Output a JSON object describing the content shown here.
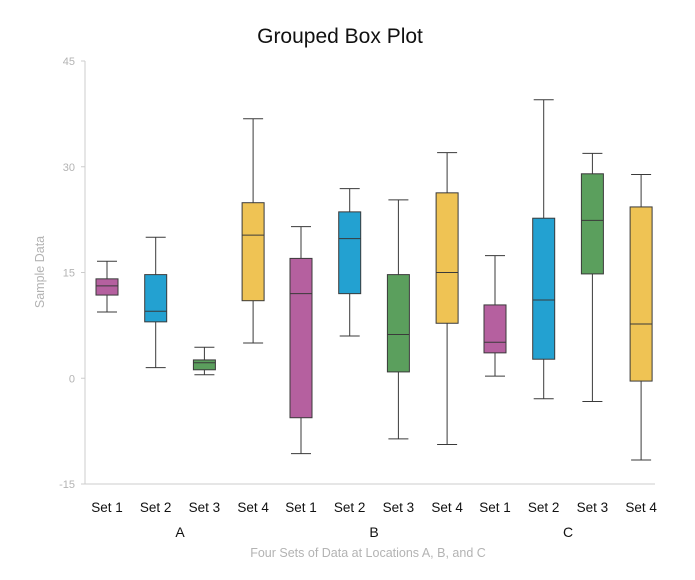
{
  "chart_data": {
    "type": "box",
    "title": "Grouped Box Plot",
    "xlabel": "Four Sets of Data at Locations A, B, and C",
    "ylabel": "Sample Data",
    "ylim": [
      -15,
      45
    ],
    "yticks": [
      -15,
      0,
      15,
      30,
      45
    ],
    "groups": [
      "A",
      "B",
      "C"
    ],
    "categories": [
      "Set 1",
      "Set 2",
      "Set 3",
      "Set 4"
    ],
    "colors": [
      "#b5609f",
      "#23a1d1",
      "#5b9f5d",
      "#efc354"
    ],
    "boxes": [
      [
        {
          "min": 9.4,
          "q1": 11.8,
          "median": 13.1,
          "q3": 14.1,
          "max": 16.6
        },
        {
          "min": 1.5,
          "q1": 8.0,
          "median": 9.5,
          "q3": 14.7,
          "max": 20.0
        },
        {
          "min": 0.5,
          "q1": 1.2,
          "median": 2.2,
          "q3": 2.6,
          "max": 4.4
        },
        {
          "min": 5.0,
          "q1": 11.0,
          "median": 20.3,
          "q3": 24.9,
          "max": 36.8
        }
      ],
      [
        {
          "min": -10.7,
          "q1": -5.6,
          "median": 12.0,
          "q3": 17.0,
          "max": 21.5
        },
        {
          "min": 6.0,
          "q1": 12.0,
          "median": 19.8,
          "q3": 23.6,
          "max": 26.9
        },
        {
          "min": -8.6,
          "q1": 0.9,
          "median": 6.2,
          "q3": 14.7,
          "max": 25.3
        },
        {
          "min": -9.4,
          "q1": 7.8,
          "median": 15.0,
          "q3": 26.3,
          "max": 32.0
        }
      ],
      [
        {
          "min": 0.3,
          "q1": 3.6,
          "median": 5.1,
          "q3": 10.4,
          "max": 17.4
        },
        {
          "min": -2.9,
          "q1": 2.7,
          "median": 11.1,
          "q3": 22.7,
          "max": 39.5
        },
        {
          "min": -3.3,
          "q1": 14.8,
          "median": 22.4,
          "q3": 29.0,
          "max": 31.9
        },
        {
          "min": -11.6,
          "q1": -0.4,
          "median": 7.7,
          "q3": 24.3,
          "max": 28.9
        }
      ]
    ],
    "grid": false
  }
}
